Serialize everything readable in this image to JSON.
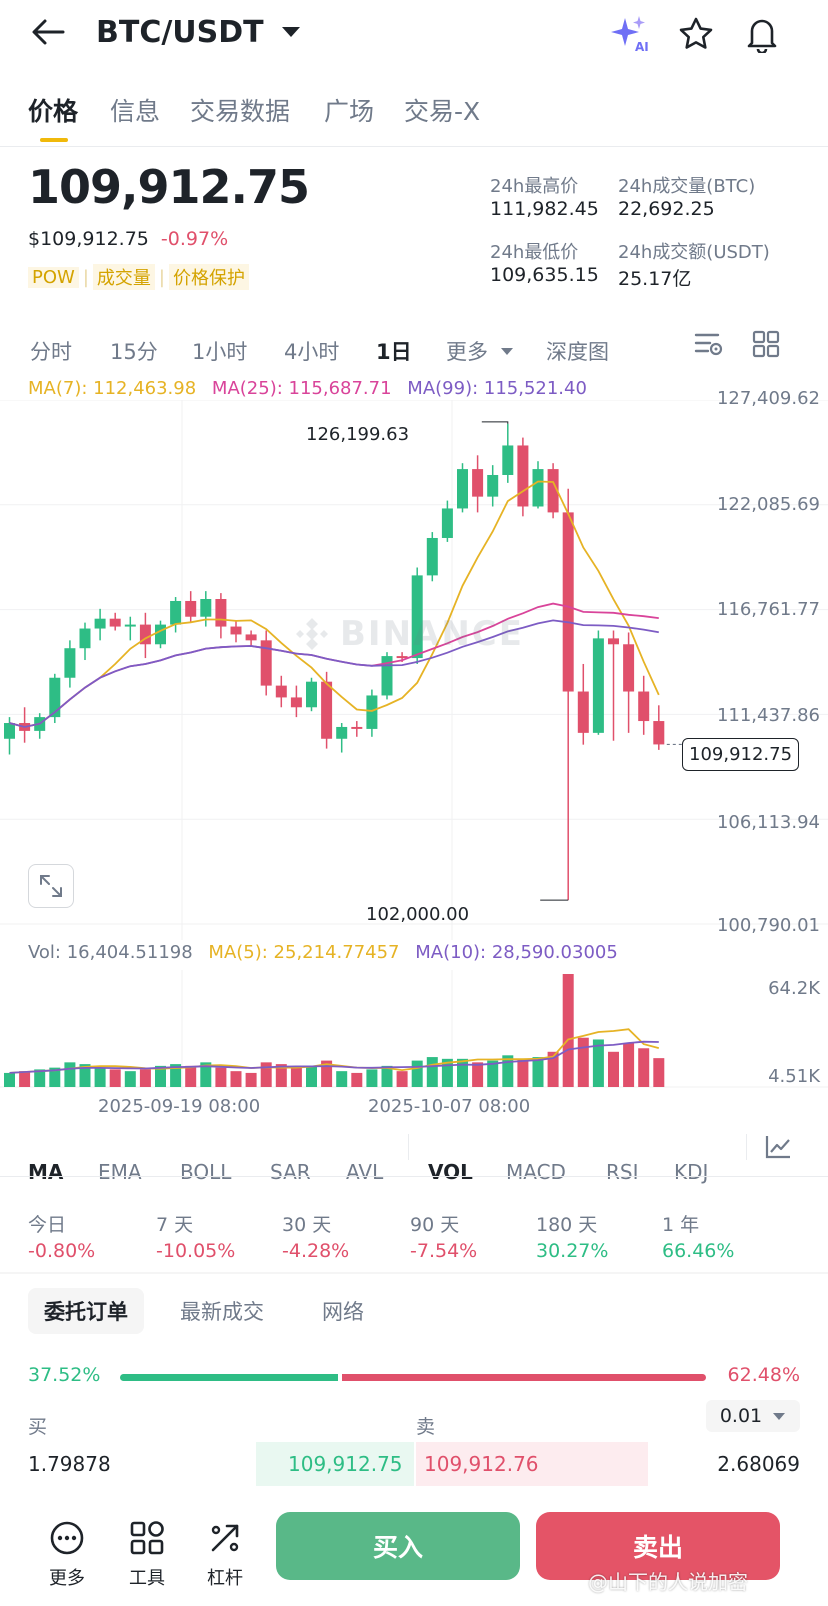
{
  "header": {
    "pair": "BTC/USDT",
    "icons": [
      "back-arrow-icon",
      "caret-down-icon",
      "ai-sparkle-icon",
      "star-icon",
      "bell-icon"
    ]
  },
  "tabs": [
    "价格",
    "信息",
    "交易数据",
    "广场",
    "交易-X"
  ],
  "price": {
    "last": "109,912.75",
    "usd": "$109,912.75",
    "change": "-0.97%",
    "tags": [
      "POW",
      "成交量",
      "价格保护"
    ]
  },
  "stats": {
    "high_label": "24h最高价",
    "high": "111,982.45",
    "vol_btc_label": "24h成交量(BTC)",
    "vol_btc": "22,692.25",
    "low_label": "24h最低价",
    "low": "109,635.15",
    "vol_usdt_label": "24h成交额(USDT)",
    "vol_usdt": "25.17亿"
  },
  "intervals": [
    "分时",
    "15分",
    "1小时",
    "4小时",
    "1日",
    "更多",
    "深度图"
  ],
  "ma_line": {
    "ma7": "MA(7): 112,463.98",
    "ma25": "MA(25): 115,687.71",
    "ma99": "MA(99): 115,521.40"
  },
  "price_axis": [
    "127,409.62",
    "122,085.69",
    "116,761.77",
    "111,437.86",
    "106,113.94",
    "100,790.01"
  ],
  "chart_annotations": {
    "high": "126,199.63",
    "low": "102,000.00",
    "current": "109,912.75",
    "watermark": "BINANCE"
  },
  "vol_line": {
    "vol": "Vol: 16,404.51198",
    "ma5": "MA(5): 25,214.77457",
    "ma10": "MA(10): 28,590.03005"
  },
  "vol_axis": [
    "64.2K",
    "4.51K"
  ],
  "time_axis": [
    "2025-09-19 08:00",
    "2025-10-07 08:00"
  ],
  "indicators": [
    "MA",
    "EMA",
    "BOLL",
    "SAR",
    "AVL",
    "VOL",
    "MACD",
    "RSI",
    "KDJ"
  ],
  "performance": [
    {
      "label": "今日",
      "value": "-0.80%"
    },
    {
      "label": "7 天",
      "value": "-10.05%"
    },
    {
      "label": "30 天",
      "value": "-4.28%"
    },
    {
      "label": "90 天",
      "value": "-7.54%"
    },
    {
      "label": "180 天",
      "value": "30.27%"
    },
    {
      "label": "1 年",
      "value": "66.46%"
    }
  ],
  "book_tabs": [
    "委托订单",
    "最新成交",
    "网络"
  ],
  "book": {
    "buy_pct": "37.52%",
    "sell_pct": "62.48%",
    "buy_fraction": 0.3752,
    "buy_label": "买",
    "sell_label": "卖",
    "precision": "0.01",
    "row1": {
      "bid_qty": "1.79878",
      "bid_price": "109,912.75",
      "ask_price": "109,912.76",
      "ask_qty": "2.68069"
    }
  },
  "bottom": {
    "more": "更多",
    "tools": "工具",
    "leverage": "杠杆",
    "buy": "买入",
    "sell": "卖出"
  },
  "watermark_text": "@山下的人说加密",
  "chart_data": {
    "type": "candlestick",
    "price_range": [
      100790.01,
      127409.62
    ],
    "candles": [
      [
        110200,
        111300,
        109400,
        111000
      ],
      [
        111000,
        111800,
        110000,
        110600
      ],
      [
        110600,
        111500,
        110200,
        111300
      ],
      [
        111300,
        113500,
        111000,
        113300
      ],
      [
        113300,
        115200,
        112800,
        114800
      ],
      [
        114800,
        116100,
        114200,
        115800
      ],
      [
        115800,
        116800,
        115200,
        116300
      ],
      [
        116300,
        116600,
        115700,
        115900
      ],
      [
        115900,
        116400,
        115200,
        116000
      ],
      [
        116000,
        116600,
        114300,
        115000
      ],
      [
        115000,
        116200,
        114800,
        116000
      ],
      [
        116000,
        117400,
        115600,
        117200
      ],
      [
        117200,
        117700,
        116100,
        116400
      ],
      [
        116400,
        117700,
        115900,
        117300
      ],
      [
        117300,
        117600,
        115300,
        115900
      ],
      [
        115900,
        116200,
        115100,
        115500
      ],
      [
        115500,
        115700,
        114900,
        115200
      ],
      [
        115200,
        115700,
        112400,
        112900
      ],
      [
        112900,
        113400,
        111800,
        112300
      ],
      [
        112300,
        112900,
        111300,
        111800
      ],
      [
        111800,
        113300,
        111600,
        113100
      ],
      [
        113100,
        113600,
        109700,
        110200
      ],
      [
        110200,
        111000,
        109500,
        110800
      ],
      [
        110800,
        111100,
        110300,
        110700
      ],
      [
        110700,
        112700,
        110300,
        112400
      ],
      [
        112400,
        114600,
        112200,
        114400
      ],
      [
        114400,
        114600,
        114100,
        114300
      ],
      [
        114300,
        118900,
        114000,
        118500
      ],
      [
        118500,
        120700,
        118200,
        120400
      ],
      [
        120400,
        122300,
        120200,
        121900
      ],
      [
        121900,
        124200,
        121700,
        123900
      ],
      [
        123900,
        124600,
        121700,
        122500
      ],
      [
        122500,
        124100,
        122000,
        123600
      ],
      [
        123600,
        126199.63,
        123200,
        125100
      ],
      [
        125100,
        125500,
        121500,
        122000
      ],
      [
        122000,
        124300,
        121900,
        123900
      ],
      [
        123900,
        124200,
        121400,
        121700
      ],
      [
        121700,
        122900,
        102000,
        112600
      ],
      [
        112600,
        114000,
        109900,
        110500
      ],
      [
        110500,
        115700,
        110400,
        115300
      ],
      [
        115300,
        115700,
        110100,
        115000
      ],
      [
        115000,
        115600,
        110500,
        112600
      ],
      [
        112600,
        113400,
        110400,
        111100
      ],
      [
        111100,
        111900,
        109635.15,
        109912.75
      ]
    ],
    "volumes": [
      8,
      9,
      10,
      11,
      14,
      13,
      11,
      10,
      9,
      10,
      12,
      13,
      12,
      14,
      11,
      9,
      8,
      14,
      13,
      11,
      12,
      15,
      9,
      8,
      10,
      12,
      9,
      15,
      17,
      16,
      16,
      14,
      15,
      18,
      16,
      17,
      20,
      64.2,
      28,
      27,
      20,
      25,
      22,
      16.4
    ],
    "volume_range": [
      4.51,
      64.2
    ]
  }
}
